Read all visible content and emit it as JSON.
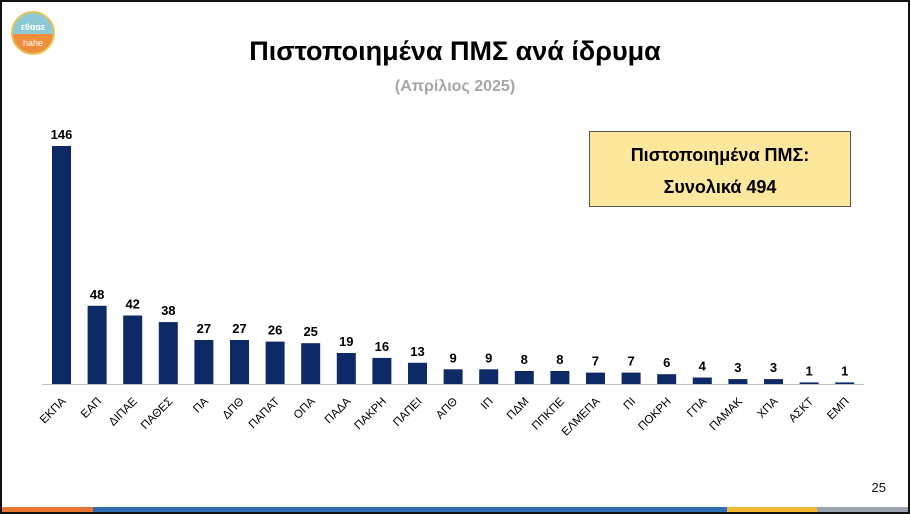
{
  "logo": {
    "top_text": "εθααε",
    "bottom_text": "hahe"
  },
  "title": "Πιστοποιημένα ΠΜΣ ανά ίδρυμα",
  "subtitle": "(Απρίλιος 2025)",
  "total_box": {
    "line1": "Πιστοποιημένα ΠΜΣ:",
    "line2": "Συνολικά 494"
  },
  "page_number": "25",
  "colors": {
    "bar": "#0d2a66",
    "total_box_bg": "#fce79c",
    "subtitle": "#a6a6a6",
    "bottom_bar": [
      "#e8762e",
      "#2f6fb3",
      "#f3b733",
      "#9aa3ae"
    ]
  },
  "chart_data": {
    "type": "bar",
    "title": "Πιστοποιημένα ΠΜΣ ανά ίδρυμα",
    "subtitle": "(Απρίλιος 2025)",
    "categories": [
      "ΕΚΠΑ",
      "ΕΑΠ",
      "ΔΙΠΑΕ",
      "ΠΑΘΕΣ",
      "ΠΑ",
      "ΔΠΘ",
      "ΠΑΠΑΤ",
      "ΟΠΑ",
      "ΠΑΔΑ",
      "ΠΑΚΡΗ",
      "ΠΑΠΕΙ",
      "ΑΠΘ",
      "ΙΠ",
      "ΠΔΜ",
      "ΠΠΚΠΕ",
      "ΕΛΜΕΠΑ",
      "ΠΙ",
      "ΠΟΚΡΗ",
      "ΓΠΑ",
      "ΠΑΜΑΚ",
      "ΧΠΑ",
      "ΑΣΚΤ",
      "ΕΜΠ"
    ],
    "values": [
      146,
      48,
      42,
      38,
      27,
      27,
      26,
      25,
      19,
      16,
      13,
      9,
      9,
      8,
      8,
      7,
      7,
      6,
      4,
      3,
      3,
      1,
      1
    ],
    "ylim": [
      0,
      146
    ],
    "grid": false,
    "data_labels": true,
    "xlabel": "",
    "ylabel": ""
  }
}
